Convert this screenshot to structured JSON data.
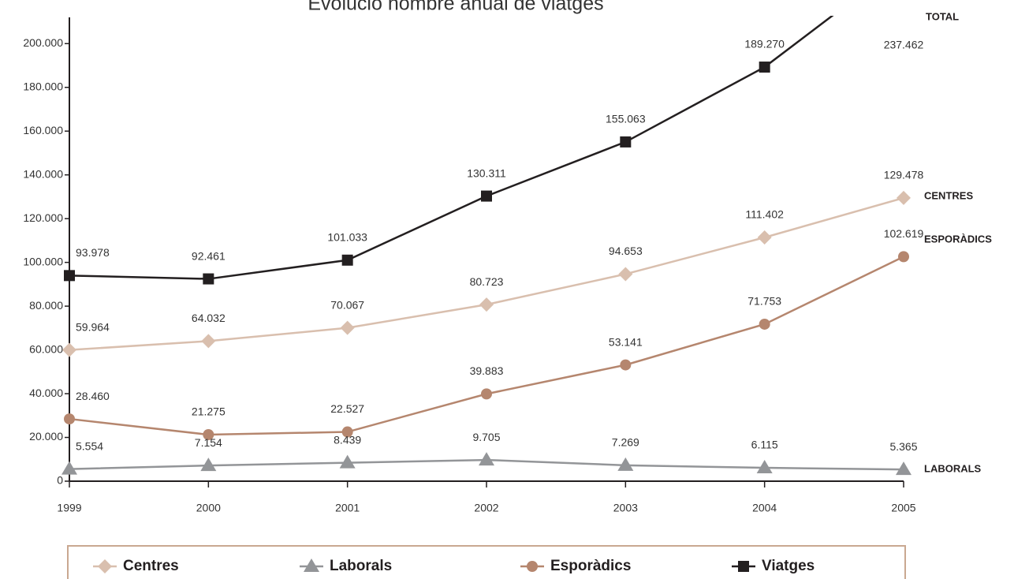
{
  "chart_data": {
    "type": "line",
    "title": "Evolució nombre anual de viatges",
    "categories": [
      "1999",
      "2000",
      "2001",
      "2002",
      "2003",
      "2004",
      "2005"
    ],
    "ylim": [
      0,
      212000
    ],
    "yticks": [
      0,
      {
        "value": 20000,
        "label": "20.000"
      },
      {
        "value": 40000,
        "label": "40.000"
      },
      {
        "value": 60000,
        "label": "60.000"
      },
      {
        "value": 80000,
        "label": "80.000"
      },
      {
        "value": 100000,
        "label": "100.000"
      },
      {
        "value": 120000,
        "label": "120.000"
      },
      {
        "value": 140000,
        "label": "140.000"
      },
      {
        "value": 160000,
        "label": "160.000"
      },
      {
        "value": 180000,
        "label": "180.000"
      },
      {
        "value": 200000,
        "label": "200.000"
      }
    ],
    "series": [
      {
        "name": "Centres",
        "color": "#d9bfae",
        "marker": "diamond",
        "values": [
          59964,
          64032,
          70067,
          80723,
          94653,
          111402,
          129478
        ],
        "value_labels": [
          "59.964",
          "64.032",
          "70.067",
          "80.723",
          "94.653",
          "111.402",
          "129.478"
        ]
      },
      {
        "name": "Laborals",
        "color": "#939598",
        "marker": "triangle",
        "values": [
          5554,
          7154,
          8439,
          9705,
          7269,
          6115,
          5365
        ],
        "value_labels": [
          "5.554",
          "7.154",
          "8.439",
          "9.705",
          "7.269",
          "6.115",
          "5.365"
        ]
      },
      {
        "name": "Esporàdics",
        "color": "#b5866e",
        "marker": "circle",
        "values": [
          28460,
          21275,
          22527,
          39883,
          53141,
          71753,
          102619
        ],
        "value_labels": [
          "28.460",
          "21.275",
          "22.527",
          "39.883",
          "53.141",
          "71.753",
          "102.619"
        ]
      },
      {
        "name": "Viatges",
        "color": "#231f20",
        "marker": "square",
        "values": [
          93978,
          92461,
          101033,
          130311,
          155063,
          189270,
          237462
        ],
        "value_labels": [
          "93.978",
          "92.461",
          "101.033",
          "130.311",
          "155.063",
          "189.270",
          "237.462"
        ]
      }
    ],
    "annotations": [
      "TOTAL",
      "CENTRES",
      "ESPORÀDICS",
      "LABORALS"
    ]
  }
}
